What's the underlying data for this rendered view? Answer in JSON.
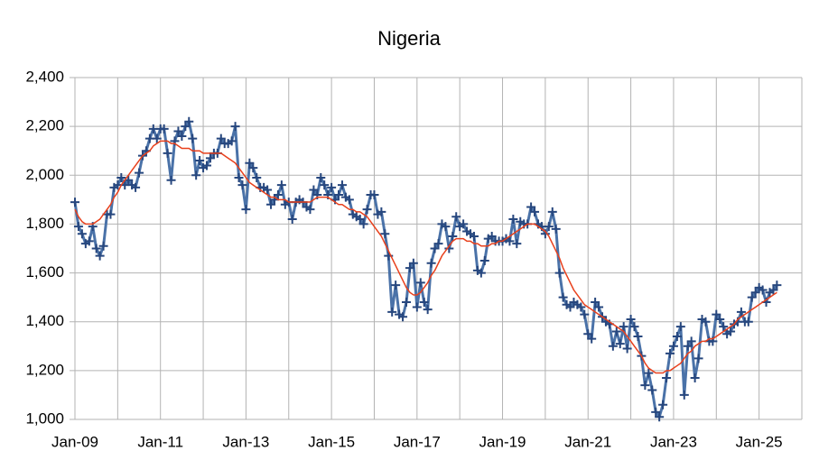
{
  "chart_data": {
    "type": "line",
    "title": "Nigeria",
    "categories": [
      "Jan-09",
      null,
      null,
      null,
      null,
      null,
      null,
      null,
      null,
      null,
      null,
      null,
      null,
      null,
      null,
      null,
      null,
      null,
      null,
      null,
      null,
      null,
      null,
      null,
      "Jan-11",
      null,
      null,
      null,
      null,
      null,
      null,
      null,
      null,
      null,
      null,
      null,
      null,
      null,
      null,
      null,
      null,
      null,
      null,
      null,
      null,
      null,
      null,
      null,
      "Jan-13",
      null,
      null,
      null,
      null,
      null,
      null,
      null,
      null,
      null,
      null,
      null,
      null,
      null,
      null,
      null,
      null,
      null,
      null,
      null,
      null,
      null,
      null,
      null,
      "Jan-15",
      null,
      null,
      null,
      null,
      null,
      null,
      null,
      null,
      null,
      null,
      null,
      null,
      null,
      null,
      null,
      null,
      null,
      null,
      null,
      null,
      null,
      null,
      null,
      "Jan-17",
      null,
      null,
      null,
      null,
      null,
      null,
      null,
      null,
      null,
      null,
      null,
      null,
      null,
      null,
      null,
      null,
      null,
      null,
      null,
      null,
      null,
      null,
      null,
      "Jan-19",
      null,
      null,
      null,
      null,
      null,
      null,
      null,
      null,
      null,
      null,
      null,
      null,
      null,
      null,
      null,
      null,
      null,
      null,
      null,
      null,
      null,
      null,
      null,
      "Jan-21",
      null,
      null,
      null,
      null,
      null,
      null,
      null,
      null,
      null,
      null,
      null,
      null,
      null,
      null,
      null,
      null,
      null,
      null,
      null,
      null,
      null,
      null,
      null,
      "Jan-23",
      null,
      null,
      null,
      null,
      null,
      null,
      null,
      null,
      null,
      null,
      null,
      null,
      null,
      null,
      null,
      null,
      null,
      null,
      null,
      null,
      null,
      null,
      null,
      "Jan-25",
      null,
      null,
      null,
      null,
      null,
      null,
      null,
      null,
      null,
      null,
      null,
      null
    ],
    "series": [
      {
        "color": "#4a72a8",
        "marker_color": "#27477e",
        "markers": true,
        "width": 3,
        "values": [
          1890,
          1790,
          1760,
          1720,
          1730,
          1790,
          1700,
          1670,
          1710,
          1840,
          1840,
          1950,
          1960,
          1990,
          1960,
          1980,
          1960,
          1950,
          2010,
          2080,
          2100,
          2150,
          2190,
          2150,
          2190,
          2190,
          2090,
          1980,
          2140,
          2180,
          2160,
          2200,
          2220,
          2150,
          2000,
          2060,
          2030,
          2040,
          2070,
          2090,
          2090,
          2150,
          2130,
          2130,
          2140,
          2200,
          1990,
          1960,
          1860,
          2050,
          2030,
          1990,
          1950,
          1950,
          1940,
          1880,
          1900,
          1920,
          1960,
          1880,
          1890,
          1820,
          1890,
          1900,
          1890,
          1870,
          1860,
          1940,
          1920,
          1990,
          1960,
          1920,
          1950,
          1900,
          1920,
          1960,
          1910,
          1900,
          1840,
          1830,
          1820,
          1800,
          1860,
          1920,
          1920,
          1840,
          1850,
          1760,
          1670,
          1440,
          1550,
          1430,
          1420,
          1480,
          1620,
          1640,
          1460,
          1560,
          1480,
          1450,
          1640,
          1700,
          1720,
          1800,
          1790,
          1700,
          1750,
          1830,
          1790,
          1800,
          1770,
          1760,
          1750,
          1610,
          1600,
          1650,
          1740,
          1750,
          1730,
          1730,
          1730,
          1740,
          1730,
          1820,
          1720,
          1810,
          1800,
          1800,
          1870,
          1850,
          1800,
          1790,
          1760,
          1790,
          1850,
          1780,
          1600,
          1500,
          1470,
          1460,
          1480,
          1470,
          1460,
          1430,
          1350,
          1330,
          1480,
          1460,
          1420,
          1400,
          1390,
          1300,
          1360,
          1310,
          1380,
          1290,
          1410,
          1380,
          1340,
          1260,
          1140,
          1190,
          1120,
          1030,
          1010,
          1060,
          1170,
          1270,
          1300,
          1340,
          1380,
          1100,
          1300,
          1320,
          1170,
          1250,
          1410,
          1400,
          1320,
          1320,
          1430,
          1410,
          1380,
          1350,
          1360,
          1390,
          1400,
          1440,
          1400,
          1400,
          1500,
          1520,
          1540,
          1530,
          1480,
          1520,
          1530,
          1550,
          null,
          null,
          null,
          null,
          null,
          null,
          null
        ]
      },
      {
        "color": "#e8401c",
        "markers": false,
        "width": 1.5,
        "values": [
          1860,
          1830,
          1810,
          1800,
          1800,
          1800,
          1810,
          1820,
          1840,
          1860,
          1880,
          1910,
          1930,
          1960,
          1980,
          2000,
          2020,
          2040,
          2060,
          2080,
          2090,
          2100,
          2120,
          2130,
          2140,
          2140,
          2140,
          2130,
          2130,
          2120,
          2110,
          2110,
          2110,
          2100,
          2100,
          2100,
          2090,
          2090,
          2090,
          2090,
          2090,
          2090,
          2080,
          2070,
          2060,
          2050,
          2030,
          2010,
          1990,
          1970,
          1960,
          1950,
          1940,
          1930,
          1920,
          1910,
          1910,
          1900,
          1900,
          1900,
          1890,
          1890,
          1890,
          1890,
          1890,
          1890,
          1890,
          1900,
          1910,
          1910,
          1910,
          1910,
          1900,
          1890,
          1880,
          1880,
          1870,
          1860,
          1860,
          1850,
          1850,
          1840,
          1830,
          1810,
          1790,
          1770,
          1750,
          1720,
          1690,
          1660,
          1630,
          1600,
          1570,
          1540,
          1520,
          1510,
          1510,
          1520,
          1540,
          1560,
          1590,
          1610,
          1640,
          1670,
          1690,
          1710,
          1730,
          1740,
          1740,
          1740,
          1730,
          1730,
          1720,
          1720,
          1710,
          1710,
          1710,
          1720,
          1720,
          1730,
          1730,
          1740,
          1750,
          1760,
          1770,
          1780,
          1790,
          1800,
          1800,
          1800,
          1790,
          1780,
          1770,
          1750,
          1720,
          1690,
          1660,
          1620,
          1590,
          1560,
          1530,
          1510,
          1490,
          1470,
          1460,
          1450,
          1440,
          1430,
          1420,
          1410,
          1400,
          1390,
          1380,
          1370,
          1360,
          1340,
          1320,
          1300,
          1280,
          1260,
          1230,
          1210,
          1200,
          1190,
          1190,
          1190,
          1200,
          1200,
          1210,
          1220,
          1230,
          1250,
          1270,
          1280,
          1300,
          1310,
          1320,
          1320,
          1330,
          1330,
          1340,
          1350,
          1360,
          1370,
          1380,
          1390,
          1410,
          1420,
          1430,
          1440,
          1450,
          1460,
          1470,
          1480,
          1490,
          1500,
          1510,
          1520,
          null,
          null,
          null,
          null,
          null,
          null,
          null
        ]
      }
    ],
    "ylim": [
      1000,
      2400
    ],
    "yticks": [
      {
        "value": 1000,
        "label": "1,000"
      },
      {
        "value": 1200,
        "label": "1,200"
      },
      {
        "value": 1400,
        "label": "1,400"
      },
      {
        "value": 1600,
        "label": "1,600"
      },
      {
        "value": 1800,
        "label": "1,800"
      },
      {
        "value": 2000,
        "label": "2,000"
      },
      {
        "value": 2200,
        "label": "2,200"
      },
      {
        "value": 2400,
        "label": "2,400"
      }
    ],
    "grid": true,
    "x_grid_every": 12
  }
}
